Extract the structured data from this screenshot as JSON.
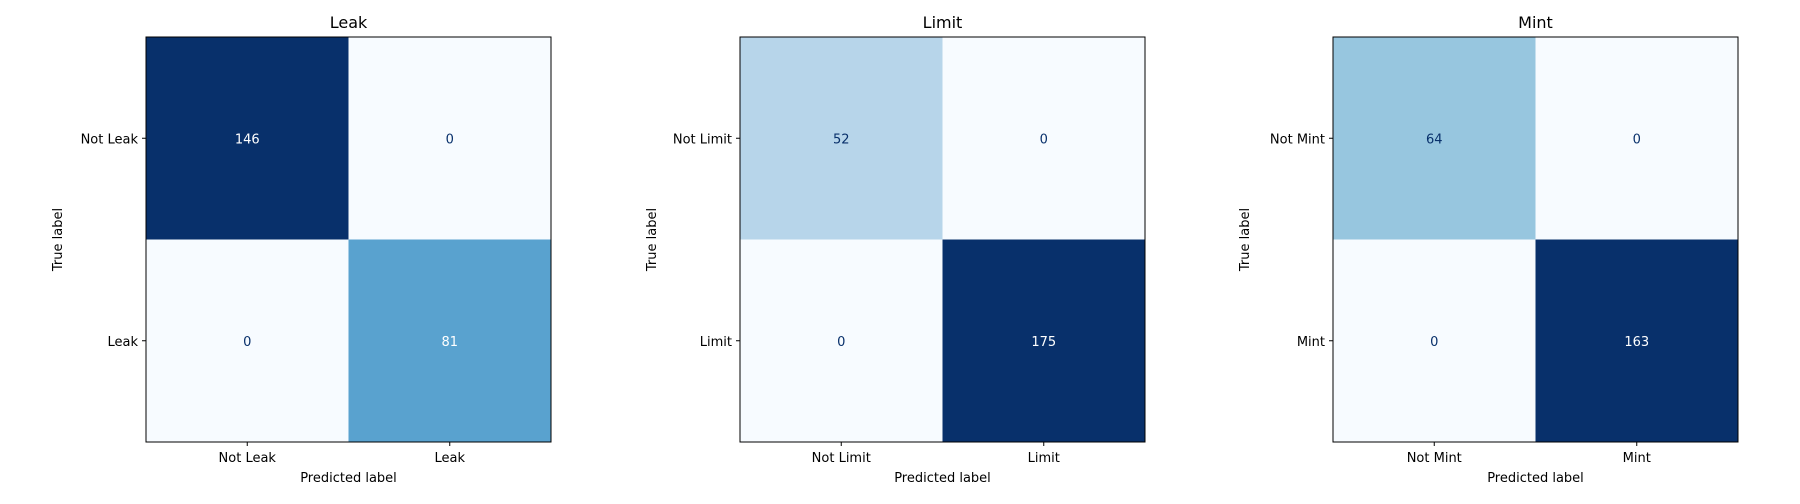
{
  "chart_data": [
    {
      "type": "heatmap",
      "title": "Leak",
      "xlabel": "Predicted label",
      "ylabel": "True label",
      "x_tick_labels": [
        "Not Leak",
        "Leak"
      ],
      "y_tick_labels": [
        "Not Leak",
        "Leak"
      ],
      "matrix": [
        [
          146,
          0
        ],
        [
          0,
          81
        ]
      ],
      "colormap": "Blues",
      "grid": false
    },
    {
      "type": "heatmap",
      "title": "Limit",
      "xlabel": "Predicted label",
      "ylabel": "True label",
      "x_tick_labels": [
        "Not Limit",
        "Limit"
      ],
      "y_tick_labels": [
        "Not Limit",
        "Limit"
      ],
      "matrix": [
        [
          52,
          0
        ],
        [
          0,
          175
        ]
      ],
      "colormap": "Blues",
      "grid": false
    },
    {
      "type": "heatmap",
      "title": "Mint",
      "xlabel": "Predicted label",
      "ylabel": "True label",
      "x_tick_labels": [
        "Not Mint",
        "Mint"
      ],
      "y_tick_labels": [
        "Not Mint",
        "Mint"
      ],
      "matrix": [
        [
          64,
          0
        ],
        [
          0,
          163
        ]
      ],
      "colormap": "Blues",
      "grid": false
    }
  ]
}
